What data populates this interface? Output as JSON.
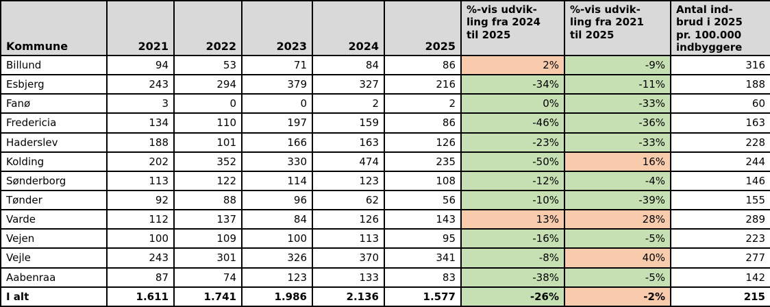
{
  "colors": {
    "header_bg": "#d9d9d9",
    "decrease_fill_green": "#c6e0b4",
    "increase_fill_orange": "#f8cbad",
    "border": "#000000"
  },
  "table": {
    "columns": [
      {
        "id": "kommune",
        "label": "Kommune"
      },
      {
        "id": "y2021",
        "label": "2021"
      },
      {
        "id": "y2022",
        "label": "2022"
      },
      {
        "id": "y2023",
        "label": "2023"
      },
      {
        "id": "y2024",
        "label": "2024"
      },
      {
        "id": "y2025",
        "label": "2025"
      },
      {
        "id": "pct_2024_2025",
        "label": "%-vis udvik-\nling fra 2024\ntil 2025"
      },
      {
        "id": "pct_2021_2025",
        "label": "%-vis udvik-\nling fra 2021\ntil 2025"
      },
      {
        "id": "per_100k",
        "label": "Antal ind-\nbrud i 2025\npr. 100.000\nindbyggere"
      }
    ],
    "rows": [
      {
        "kommune": "Billund",
        "slug": "billund",
        "values": [
          "94",
          "53",
          "71",
          "84",
          "86"
        ],
        "pct_2024_2025": {
          "text": "2%",
          "fill": "orange"
        },
        "pct_2021_2025": {
          "text": "-9%",
          "fill": "green"
        },
        "per_100k": "316",
        "total": false
      },
      {
        "kommune": "Esbjerg",
        "slug": "esbjerg",
        "values": [
          "243",
          "294",
          "379",
          "327",
          "216"
        ],
        "pct_2024_2025": {
          "text": "-34%",
          "fill": "green"
        },
        "pct_2021_2025": {
          "text": "-11%",
          "fill": "green"
        },
        "per_100k": "188",
        "total": false
      },
      {
        "kommune": "Fanø",
        "slug": "fanoe",
        "values": [
          "3",
          "0",
          "0",
          "2",
          "2"
        ],
        "pct_2024_2025": {
          "text": "0%",
          "fill": "green"
        },
        "pct_2021_2025": {
          "text": "-33%",
          "fill": "green"
        },
        "per_100k": "60",
        "total": false
      },
      {
        "kommune": "Fredericia",
        "slug": "fredericia",
        "values": [
          "134",
          "110",
          "197",
          "159",
          "86"
        ],
        "pct_2024_2025": {
          "text": "-46%",
          "fill": "green"
        },
        "pct_2021_2025": {
          "text": "-36%",
          "fill": "green"
        },
        "per_100k": "163",
        "total": false
      },
      {
        "kommune": "Haderslev",
        "slug": "haderslev",
        "values": [
          "188",
          "101",
          "166",
          "163",
          "126"
        ],
        "pct_2024_2025": {
          "text": "-23%",
          "fill": "green"
        },
        "pct_2021_2025": {
          "text": "-33%",
          "fill": "green"
        },
        "per_100k": "228",
        "total": false
      },
      {
        "kommune": "Kolding",
        "slug": "kolding",
        "values": [
          "202",
          "352",
          "330",
          "474",
          "235"
        ],
        "pct_2024_2025": {
          "text": "-50%",
          "fill": "green"
        },
        "pct_2021_2025": {
          "text": "16%",
          "fill": "orange"
        },
        "per_100k": "244",
        "total": false
      },
      {
        "kommune": "Sønderborg",
        "slug": "soenderborg",
        "values": [
          "113",
          "122",
          "114",
          "123",
          "108"
        ],
        "pct_2024_2025": {
          "text": "-12%",
          "fill": "green"
        },
        "pct_2021_2025": {
          "text": "-4%",
          "fill": "green"
        },
        "per_100k": "146",
        "total": false
      },
      {
        "kommune": "Tønder",
        "slug": "toender",
        "values": [
          "92",
          "88",
          "96",
          "62",
          "56"
        ],
        "pct_2024_2025": {
          "text": "-10%",
          "fill": "green"
        },
        "pct_2021_2025": {
          "text": "-39%",
          "fill": "green"
        },
        "per_100k": "155",
        "total": false
      },
      {
        "kommune": "Varde",
        "slug": "varde",
        "values": [
          "112",
          "137",
          "84",
          "126",
          "143"
        ],
        "pct_2024_2025": {
          "text": "13%",
          "fill": "orange"
        },
        "pct_2021_2025": {
          "text": "28%",
          "fill": "orange"
        },
        "per_100k": "289",
        "total": false
      },
      {
        "kommune": "Vejen",
        "slug": "vejen",
        "values": [
          "100",
          "109",
          "100",
          "113",
          "95"
        ],
        "pct_2024_2025": {
          "text": "-16%",
          "fill": "green"
        },
        "pct_2021_2025": {
          "text": "-5%",
          "fill": "green"
        },
        "per_100k": "223",
        "total": false
      },
      {
        "kommune": "Vejle",
        "slug": "vejle",
        "values": [
          "243",
          "301",
          "326",
          "370",
          "341"
        ],
        "pct_2024_2025": {
          "text": "-8%",
          "fill": "green"
        },
        "pct_2021_2025": {
          "text": "40%",
          "fill": "orange"
        },
        "per_100k": "277",
        "total": false
      },
      {
        "kommune": "Aabenraa",
        "slug": "aabenraa",
        "values": [
          "87",
          "74",
          "123",
          "133",
          "83"
        ],
        "pct_2024_2025": {
          "text": "-38%",
          "fill": "green"
        },
        "pct_2021_2025": {
          "text": "-5%",
          "fill": "green"
        },
        "per_100k": "142",
        "total": false
      },
      {
        "kommune": "I alt",
        "slug": "i-alt",
        "values": [
          "1.611",
          "1.741",
          "1.986",
          "2.136",
          "1.577"
        ],
        "pct_2024_2025": {
          "text": "-26%",
          "fill": "green"
        },
        "pct_2021_2025": {
          "text": "-2%",
          "fill": "orange"
        },
        "per_100k": "215",
        "total": true
      }
    ]
  }
}
